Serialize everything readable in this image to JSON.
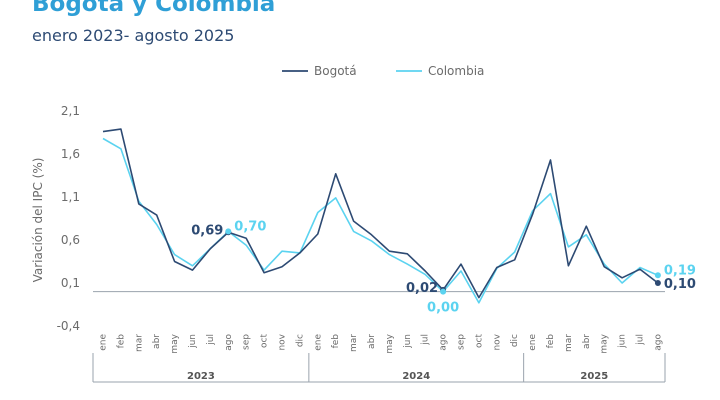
{
  "header": {
    "title": "Bogotá y Colombia",
    "subtitle": "enero 2023- agosto 2025"
  },
  "colors": {
    "bogota": "#2d4a73",
    "colombia": "#5bd3f0",
    "axis": "#9aa3ad",
    "text": "#6b6b6b"
  },
  "chart_data": {
    "type": "line",
    "title": "Bogotá y Colombia",
    "subtitle": "enero 2023- agosto 2025",
    "xlabel": "",
    "ylabel": "Variación del IPC (%)",
    "ylim": [
      -0.4,
      2.1
    ],
    "yticks": [
      2.1,
      1.6,
      1.1,
      0.6,
      0.1,
      -0.4
    ],
    "ytick_labels": [
      "2,1",
      "1,6",
      "1,1",
      "0,6",
      "0,1",
      "-0,4"
    ],
    "legend_position": "top",
    "categories": [
      "ene",
      "feb",
      "mar",
      "abr",
      "may",
      "jun",
      "jul",
      "ago",
      "sep",
      "oct",
      "nov",
      "dic",
      "ene",
      "feb",
      "mar",
      "abr",
      "may",
      "jun",
      "jul",
      "ago",
      "sep",
      "oct",
      "nov",
      "dic",
      "ene",
      "feb",
      "mar",
      "abr",
      "may",
      "jun",
      "jul",
      "ago"
    ],
    "years": [
      {
        "label": "2023",
        "start": 0,
        "end": 11
      },
      {
        "label": "2024",
        "start": 12,
        "end": 23
      },
      {
        "label": "2025",
        "start": 24,
        "end": 31
      }
    ],
    "series": [
      {
        "name": "Bogotá",
        "values": [
          1.86,
          1.89,
          1.02,
          0.89,
          0.35,
          0.25,
          0.5,
          0.69,
          0.62,
          0.22,
          0.29,
          0.45,
          0.67,
          1.37,
          0.82,
          0.66,
          0.47,
          0.44,
          0.24,
          0.02,
          0.32,
          -0.07,
          0.28,
          0.37,
          0.9,
          1.53,
          0.3,
          0.76,
          0.29,
          0.16,
          0.26,
          0.1
        ],
        "end_label": "0,10"
      },
      {
        "name": "Colombia",
        "values": [
          1.78,
          1.66,
          1.05,
          0.78,
          0.43,
          0.3,
          0.5,
          0.7,
          0.54,
          0.25,
          0.47,
          0.45,
          0.92,
          1.09,
          0.7,
          0.59,
          0.43,
          0.32,
          0.2,
          0.0,
          0.24,
          -0.13,
          0.27,
          0.46,
          0.94,
          1.14,
          0.52,
          0.66,
          0.32,
          0.1,
          0.28,
          0.19
        ],
        "end_label": "0,19"
      }
    ],
    "annotations": [
      {
        "series": "Bogotá",
        "index": 7,
        "text": "0,69",
        "side": "left"
      },
      {
        "series": "Colombia",
        "index": 7,
        "text": "0,70",
        "side": "right"
      },
      {
        "series": "Bogotá",
        "index": 19,
        "text": "0,02",
        "side": "left"
      },
      {
        "series": "Colombia",
        "index": 19,
        "text": "0,00",
        "side": "below"
      },
      {
        "series": "Bogotá",
        "index": 31,
        "text": "0,10",
        "side": "right"
      },
      {
        "series": "Colombia",
        "index": 31,
        "text": "0,19",
        "side": "right"
      }
    ]
  }
}
